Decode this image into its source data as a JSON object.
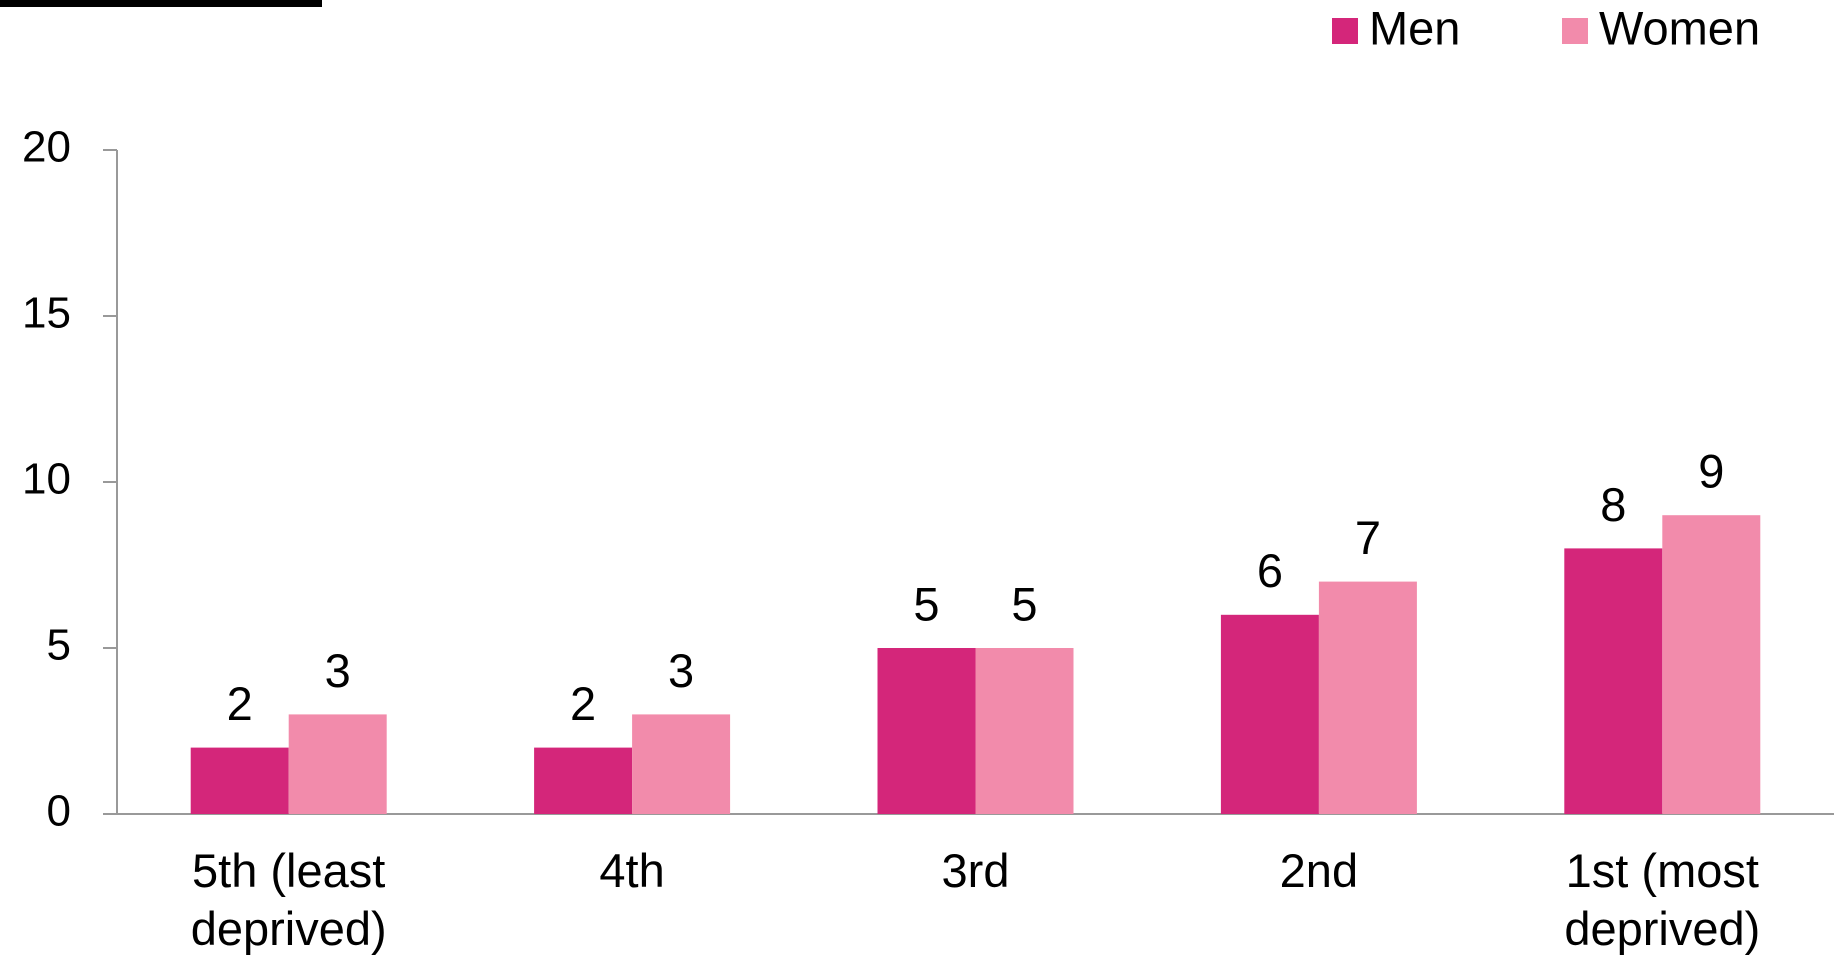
{
  "chart_data": {
    "type": "bar",
    "categories": [
      "5th (least deprived)",
      "4th",
      "3rd",
      "2nd",
      "1st (most deprived)"
    ],
    "series": [
      {
        "name": "Men",
        "color": "#d4267a",
        "values": [
          2,
          2,
          5,
          6,
          8
        ]
      },
      {
        "name": "Women",
        "color": "#f28bab",
        "values": [
          3,
          3,
          5,
          7,
          9
        ]
      }
    ],
    "ylim": [
      0,
      20
    ],
    "yticks": [
      0,
      5,
      10,
      15,
      20
    ],
    "grid": false,
    "legend": "top-right"
  }
}
